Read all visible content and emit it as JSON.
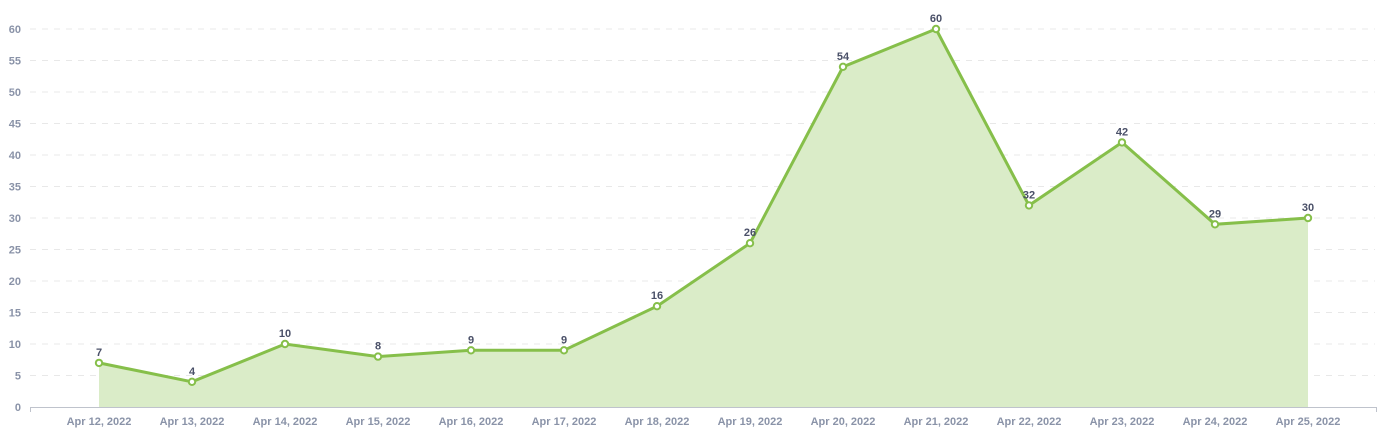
{
  "chart_data": {
    "type": "area",
    "categories": [
      "Apr 12, 2022",
      "Apr 13, 2022",
      "Apr 14, 2022",
      "Apr 15, 2022",
      "Apr 16, 2022",
      "Apr 17, 2022",
      "Apr 18, 2022",
      "Apr 19, 2022",
      "Apr 20, 2022",
      "Apr 21, 2022",
      "Apr 22, 2022",
      "Apr 23, 2022",
      "Apr 24, 2022",
      "Apr 25, 2022"
    ],
    "values": [
      7,
      4,
      10,
      8,
      9,
      9,
      16,
      26,
      54,
      60,
      32,
      42,
      29,
      30
    ],
    "ylim": [
      0,
      60
    ],
    "yticks": [
      0,
      5,
      10,
      15,
      20,
      25,
      30,
      35,
      40,
      45,
      50,
      55,
      60
    ],
    "grid": true,
    "data_labels": true,
    "colors": {
      "line": "#86bf4a",
      "fill": "#daecc8",
      "grid": "#e8e8e8",
      "axis": "#bfc3cc"
    }
  }
}
